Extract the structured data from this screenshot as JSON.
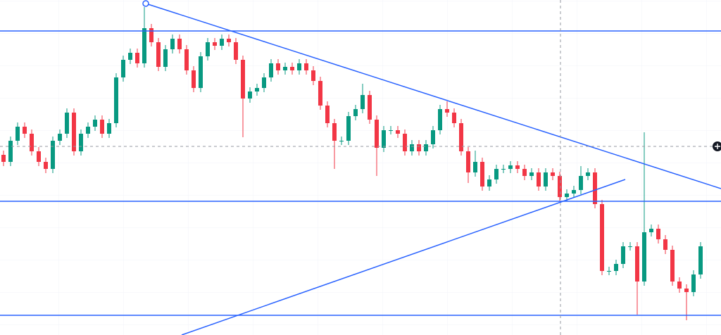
{
  "chart_data": {
    "type": "candlestick",
    "open": [
      256,
      246,
      276,
      296,
      286,
      261,
      246,
      236,
      276,
      286,
      316,
      261,
      286,
      296,
      306,
      286,
      301,
      366,
      391,
      401,
      386,
      436,
      416,
      381,
      406,
      421,
      406,
      376,
      351,
      396,
      416,
      411,
      421,
      416,
      391,
      336,
      346,
      351,
      366,
      386,
      376,
      381,
      376,
      386,
      376,
      361,
      326,
      301,
      276,
      276,
      311,
      321,
      341,
      306,
      266,
      291,
      291,
      286,
      261,
      271,
      261,
      271,
      291,
      321,
      316,
      301,
      261,
      231,
      246,
      211,
      221,
      236,
      236,
      241,
      236,
      226,
      231,
      211,
      231,
      226,
      196,
      201,
      206,
      226,
      231,
      186,
      91,
      91,
      101,
      126,
      126,
      76,
      146,
      151,
      136,
      121,
      76,
      66,
      61,
      86
    ],
    "high": [
      262,
      282,
      302,
      302,
      292,
      267,
      252,
      282,
      292,
      322,
      322,
      292,
      302,
      312,
      312,
      307,
      372,
      397,
      407,
      407,
      466,
      442,
      422,
      412,
      427,
      427,
      412,
      382,
      402,
      422,
      422,
      427,
      427,
      422,
      397,
      352,
      357,
      372,
      392,
      392,
      387,
      387,
      392,
      392,
      382,
      367,
      332,
      307,
      282,
      317,
      327,
      357,
      347,
      312,
      297,
      297,
      297,
      292,
      277,
      277,
      277,
      297,
      327,
      332,
      322,
      307,
      267,
      262,
      252,
      227,
      242,
      242,
      247,
      247,
      242,
      237,
      237,
      237,
      237,
      232,
      207,
      212,
      240,
      237,
      237,
      192,
      97,
      107,
      132,
      132,
      132,
      288,
      157,
      157,
      142,
      127,
      82,
      72,
      92,
      132
    ],
    "low": [
      240,
      240,
      270,
      280,
      255,
      240,
      230,
      230,
      270,
      280,
      255,
      255,
      280,
      290,
      280,
      280,
      295,
      360,
      385,
      380,
      380,
      410,
      375,
      375,
      400,
      400,
      370,
      345,
      345,
      390,
      405,
      405,
      410,
      385,
      281,
      330,
      340,
      345,
      360,
      370,
      370,
      370,
      370,
      370,
      355,
      320,
      295,
      236,
      270,
      270,
      305,
      315,
      300,
      226,
      260,
      285,
      280,
      255,
      255,
      255,
      255,
      265,
      285,
      310,
      295,
      255,
      216,
      225,
      205,
      205,
      215,
      230,
      230,
      230,
      220,
      220,
      205,
      205,
      220,
      190,
      190,
      195,
      200,
      220,
      180,
      85,
      85,
      85,
      95,
      120,
      29,
      70,
      140,
      130,
      115,
      70,
      60,
      21,
      55,
      80
    ],
    "close": [
      246,
      276,
      296,
      286,
      261,
      246,
      236,
      276,
      286,
      316,
      261,
      286,
      296,
      306,
      286,
      301,
      366,
      391,
      401,
      386,
      436,
      416,
      381,
      406,
      421,
      406,
      376,
      351,
      396,
      416,
      411,
      421,
      416,
      391,
      336,
      346,
      351,
      366,
      386,
      376,
      381,
      376,
      386,
      376,
      361,
      326,
      301,
      276,
      276,
      311,
      321,
      341,
      306,
      266,
      291,
      291,
      286,
      261,
      271,
      261,
      271,
      291,
      321,
      316,
      301,
      261,
      231,
      246,
      211,
      221,
      236,
      236,
      241,
      236,
      226,
      231,
      211,
      231,
      226,
      196,
      201,
      206,
      226,
      231,
      186,
      91,
      91,
      101,
      126,
      126,
      76,
      146,
      151,
      136,
      121,
      76,
      66,
      61,
      86,
      126
    ],
    "xlim": [
      -0.5,
      101.9
    ],
    "ylim": [
      0,
      476
    ],
    "up_color": "#089981",
    "down_color": "#f23645",
    "line_color": "#2962ff",
    "levels": [
      432,
      190,
      28
    ],
    "trendlines": [
      {
        "x": [
          20.2,
          101.9
        ],
        "y": [
          471,
          208
        ]
      },
      {
        "x": [
          25.3,
          88.3
        ],
        "y": [
          0,
          221
        ]
      }
    ]
  }
}
